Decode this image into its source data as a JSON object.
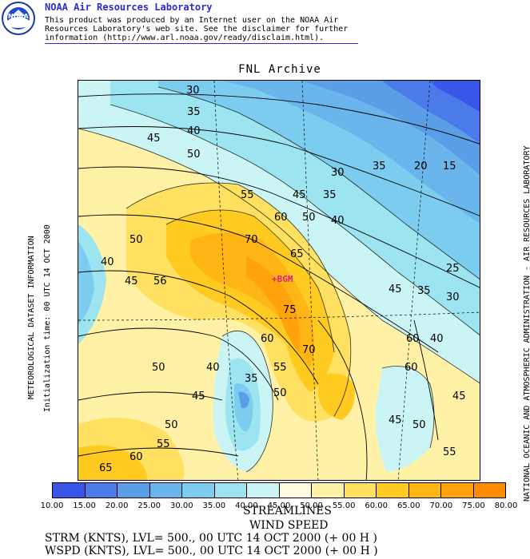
{
  "header": {
    "title": "NOAA Air Resources Laboratory",
    "line1": "This product was produced by an Internet user on the NOAA Air",
    "line2": "Resources Laboratory's web site.  See the disclaimer for further",
    "line3": "information (http://www.arl.noaa.gov/ready/disclaim.html).",
    "logo_text": "NOAA"
  },
  "map": {
    "title": "FNL Archive",
    "station_label": "+BGM",
    "contour_labels": [
      "30",
      "35",
      "40",
      "45",
      "50",
      "30",
      "35",
      "20",
      "15",
      "55",
      "45",
      "35",
      "60",
      "50",
      "40",
      "50",
      "70",
      "40",
      "45",
      "56",
      "65",
      "25",
      "45",
      "35",
      "30",
      "75",
      "60",
      "60",
      "40",
      "70",
      "50",
      "40",
      "55",
      "35",
      "50",
      "45",
      "45",
      "60",
      "50",
      "55",
      "50",
      "45",
      "60",
      "65",
      "55"
    ]
  },
  "left_text": {
    "line1": "METEOROLOGICAL DATASET INFORMATION",
    "line2": "Initialization time: 00 UTC 14 OCT 2000"
  },
  "right_text": "NATIONAL OCEANIC AND ATMOSPHERIC ADMINISTRATION - AIR RESOURCES LABORATORY",
  "colorbar": {
    "colors": [
      "#3a56e8",
      "#4a7be8",
      "#5a9ee8",
      "#6ab6ec",
      "#7cccf0",
      "#9ce4f0",
      "#cbf4f4",
      "#fffbe0",
      "#fff2a6",
      "#ffe060",
      "#ffcb20",
      "#ffb614",
      "#ffa20c",
      "#ff8c00"
    ],
    "ticks": [
      "10.00",
      "15.00",
      "20.00",
      "25.00",
      "30.00",
      "35.00",
      "40.00",
      "45.00",
      "50.00",
      "55.00",
      "60.00",
      "65.00",
      "70.00",
      "75.00",
      "80.00"
    ]
  },
  "footer": {
    "line1": "STREAMLINES",
    "line2": "WIND SPEED",
    "line3": "STRM (KNTS),  LVL= 500., 00 UTC 14 OCT 2000 (+ 00 H )",
    "line4": "WSPD (KNTS),  LVL= 500., 00 UTC 14 OCT 2000 (+ 00 H )"
  }
}
